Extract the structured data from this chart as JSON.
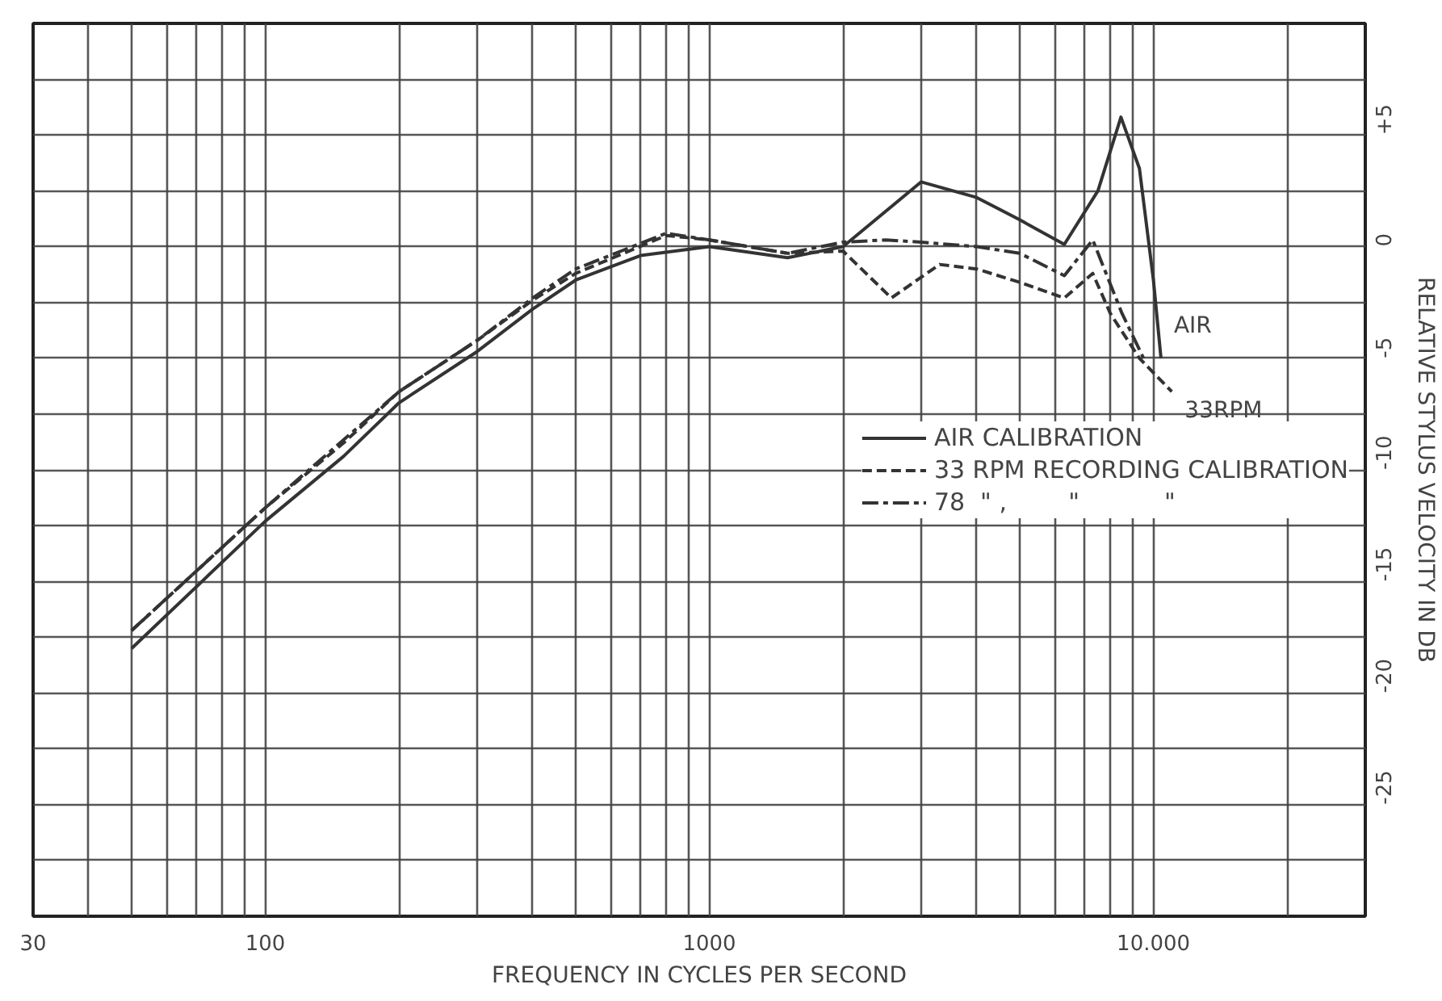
{
  "chart_data": {
    "type": "line",
    "xlabel": "FREQUENCY IN CYCLES PER SECOND",
    "ylabel": "RELATIVE STYLUS VELOCITY IN DB",
    "log": "x",
    "xlim": [
      30,
      30000
    ],
    "ylim": [
      -30,
      10
    ],
    "xticks": [
      30,
      {
        "value": 40,
        "label": null
      },
      {
        "value": 50,
        "label": null
      },
      {
        "value": 60,
        "label": null
      },
      {
        "value": 70,
        "label": null
      },
      {
        "value": 80,
        "label": null
      },
      {
        "value": 90,
        "label": null
      },
      100,
      {
        "value": 200,
        "label": null
      },
      {
        "value": 300,
        "label": null
      },
      {
        "value": 400,
        "label": null
      },
      {
        "value": 500,
        "label": null
      },
      {
        "value": 600,
        "label": null
      },
      {
        "value": 700,
        "label": null
      },
      {
        "value": 800,
        "label": null
      },
      {
        "value": 900,
        "label": null
      },
      1000,
      {
        "value": 2000,
        "label": null
      },
      {
        "value": 3000,
        "label": null
      },
      {
        "value": 4000,
        "label": null
      },
      {
        "value": 5000,
        "label": null
      },
      {
        "value": 6000,
        "label": null
      },
      {
        "value": 7000,
        "label": null
      },
      {
        "value": 8000,
        "label": null
      },
      {
        "value": 9000,
        "label": null
      },
      {
        "value": 10000,
        "label": "10.000"
      },
      {
        "value": 20000,
        "label": null
      }
    ],
    "yticks": [
      {
        "value": 7.5,
        "label": null
      },
      {
        "value": 5,
        "label": "+5"
      },
      {
        "value": 2.5,
        "label": null
      },
      0,
      {
        "value": -2.5,
        "label": null
      },
      -5,
      {
        "value": -7.5,
        "label": null
      },
      -10,
      {
        "value": -12.5,
        "label": null
      },
      -15,
      {
        "value": -17.5,
        "label": null
      },
      -20,
      {
        "value": -22.5,
        "label": null
      },
      -25,
      {
        "value": -27.5,
        "label": null
      }
    ],
    "grid": true,
    "legend": "center right",
    "marker": "none",
    "series": [
      {
        "name": "AIR CALIBRATION",
        "color": "#333333",
        "line_style": "solid",
        "x": [
          50,
          100,
          150,
          200,
          300,
          400,
          500,
          700,
          1000,
          1500,
          2000,
          3000,
          4000,
          5000,
          6300,
          7500,
          8450,
          9300,
          10000,
          10400
        ],
        "values": [
          -18,
          -12.3,
          -9.4,
          -7,
          -4.7,
          -2.8,
          -1.5,
          -0.4,
          0,
          -0.5,
          0,
          2.9,
          2.2,
          1.2,
          0.1,
          2.5,
          5.8,
          3.5,
          -1.5,
          -5
        ]
      },
      {
        "name": "33 RPM RECORDING CALIBRATION",
        "color": "#333333",
        "line_style": "dashed",
        "x": [
          50,
          100,
          150,
          200,
          300,
          400,
          500,
          800,
          1000,
          1500,
          2000,
          2570,
          3300,
          4000,
          5000,
          6300,
          7300,
          8000,
          9300,
          11000
        ],
        "values": [
          -17.2,
          -11.7,
          -8.8,
          -6.5,
          -4.2,
          -2.4,
          -1.2,
          0.5,
          0.3,
          -0.3,
          -0.2,
          -2.3,
          -0.8,
          -1,
          -1.6,
          -2.3,
          -1.2,
          -3,
          -5,
          -6.5
        ]
      },
      {
        "name": "78  \" ,        \"           \"",
        "color": "#333333",
        "line_style": "dashdot",
        "x": [
          50,
          100,
          200,
          300,
          400,
          500,
          800,
          1000,
          1500,
          2000,
          2500,
          3000,
          4000,
          5000,
          6300,
          7300,
          8500,
          9500
        ],
        "values": [
          -17.2,
          -11.7,
          -6.5,
          -4.2,
          -2.3,
          -1,
          0.6,
          0.3,
          -0.3,
          0.2,
          0.3,
          0.2,
          0,
          -0.3,
          -1.3,
          0.3,
          -3,
          -5
        ]
      }
    ],
    "annotations": [
      "AIR",
      "33RPM"
    ]
  }
}
